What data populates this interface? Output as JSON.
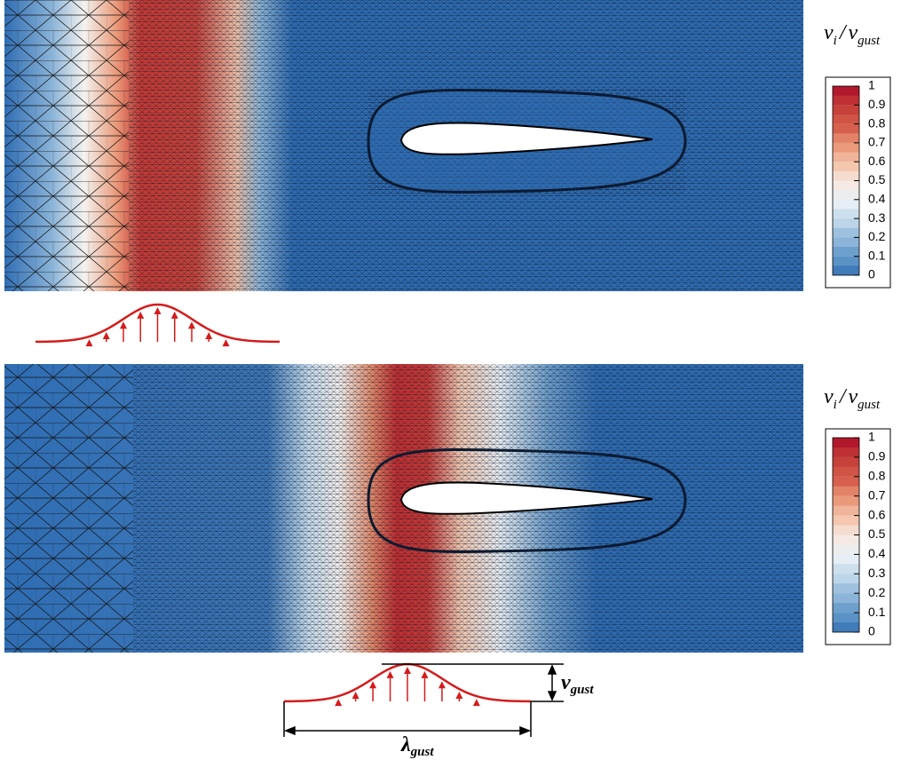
{
  "panels": [
    {
      "legend": {
        "title": {
          "numerator": "v",
          "numerator_sub": "i",
          "separator": "/",
          "denominator": "v",
          "denominator_sub": "gust"
        },
        "labels": [
          1,
          0.9,
          0.8,
          0.7,
          0.6,
          0.5,
          0.4,
          0.3,
          0.2,
          0.1,
          0
        ]
      }
    },
    {
      "legend": {
        "title": {
          "numerator": "v",
          "numerator_sub": "i",
          "separator": "/",
          "denominator": "v",
          "denominator_sub": "gust"
        },
        "labels": [
          1,
          0.9,
          0.8,
          0.7,
          0.6,
          0.5,
          0.4,
          0.3,
          0.2,
          0.1,
          0
        ]
      }
    }
  ],
  "annotations": {
    "amplitude": {
      "symbol": "v",
      "sub": "gust"
    },
    "wavelength": {
      "symbol": "λ",
      "sub": "gust"
    }
  }
}
